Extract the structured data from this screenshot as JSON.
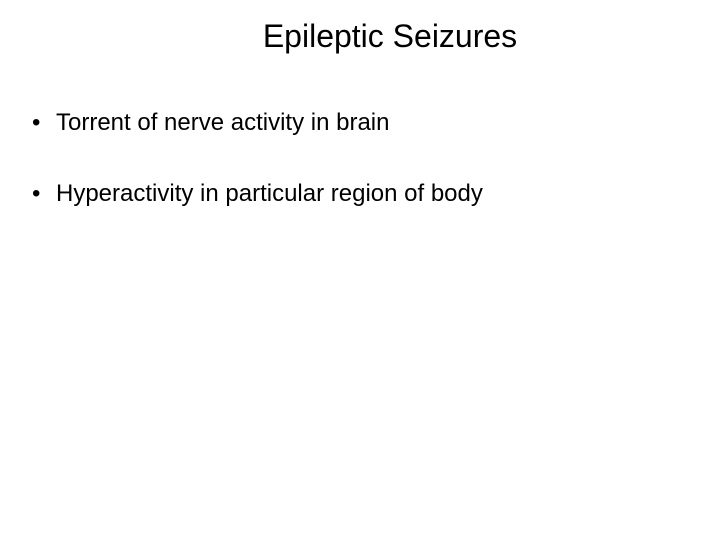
{
  "slide": {
    "title": "Epileptic Seizures",
    "bullets": [
      "Torrent of nerve activity in brain",
      "Hyperactivity in particular region of body"
    ],
    "styling": {
      "background_color": "#ffffff",
      "text_color": "#000000",
      "title_fontsize": 32,
      "bullet_fontsize": 24,
      "font_family": "Arial"
    }
  }
}
